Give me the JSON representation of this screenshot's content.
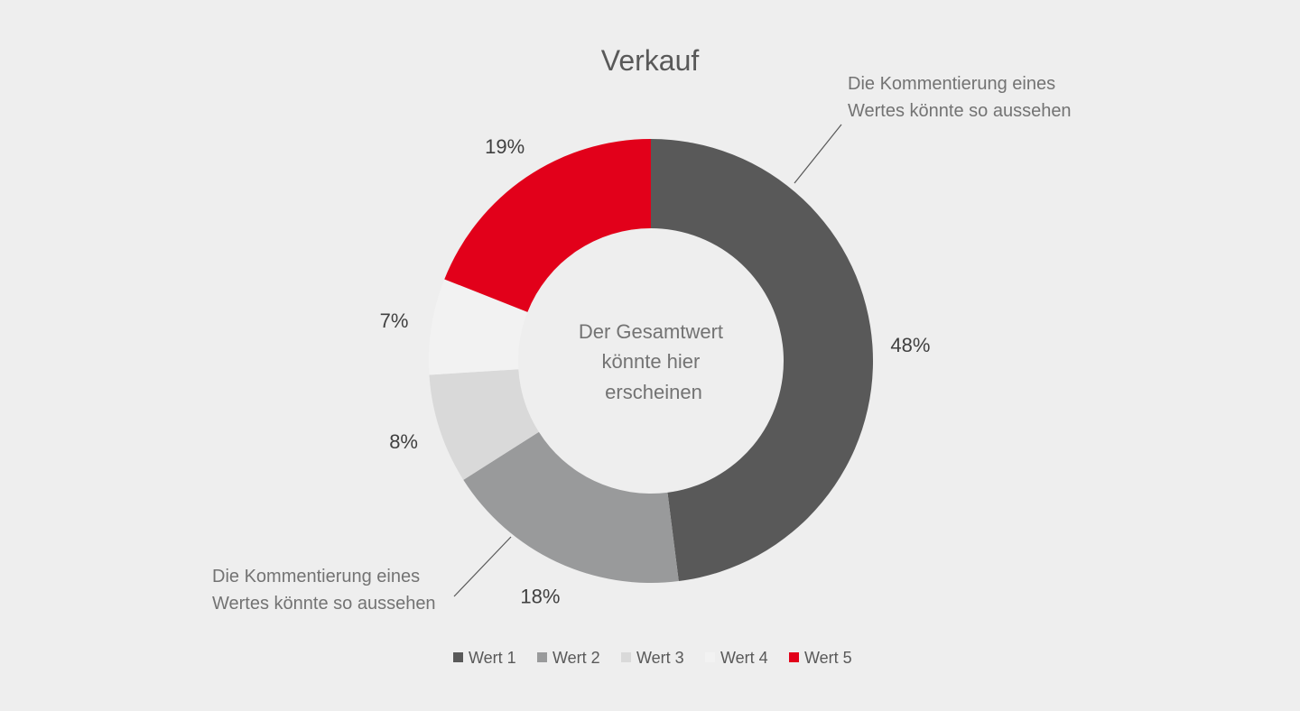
{
  "chart_data": {
    "type": "pie",
    "title": "Verkauf",
    "categories": [
      "Wert 1",
      "Wert 2",
      "Wert 3",
      "Wert 4",
      "Wert 5"
    ],
    "values": [
      48,
      18,
      8,
      7,
      19
    ],
    "data_labels": [
      "48%",
      "18%",
      "8%",
      "7%",
      "19%"
    ],
    "colors": [
      "#595959",
      "#999a9b",
      "#d9d9d9",
      "#f2f2f2",
      "#e2001a"
    ],
    "donut": true,
    "center_text": [
      "Der Gesamtwert",
      "könnte hier",
      "erscheinen"
    ],
    "annotations": [
      {
        "series": "Wert 1",
        "lines": [
          "Die Kommentierung eines",
          "Wertes könnte so aussehen"
        ]
      },
      {
        "series": "Wert 2",
        "lines": [
          "Die Kommentierung eines",
          "Wertes könnte so aussehen"
        ]
      }
    ],
    "legend": {
      "position": "bottom"
    }
  }
}
